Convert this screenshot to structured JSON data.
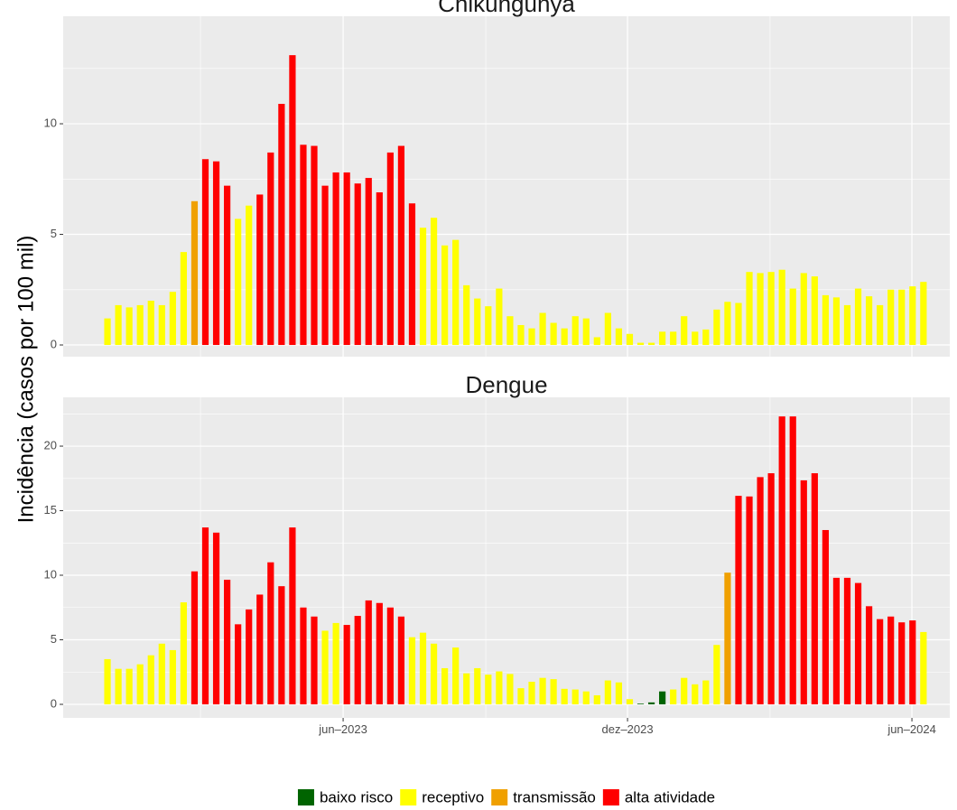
{
  "ylabel": "Incidência (casos por 100 mil)",
  "legend": {
    "position": "bottom",
    "items": [
      {
        "name": "baixo risco",
        "color": "#006400"
      },
      {
        "name": "receptivo",
        "color": "#ffff00"
      },
      {
        "name": "transmissão",
        "color": "#f0a000"
      },
      {
        "name": "alta atividade",
        "color": "#ff0000"
      }
    ]
  },
  "chart_data": [
    {
      "type": "bar",
      "title": "Chikungunya",
      "values": [
        1.2,
        1.8,
        1.7,
        1.8,
        2.0,
        1.8,
        2.4,
        4.2,
        6.5,
        8.4,
        8.3,
        7.2,
        5.7,
        6.3,
        6.8,
        8.7,
        10.9,
        13.1,
        9.05,
        9.0,
        7.2,
        7.8,
        7.8,
        7.3,
        7.55,
        6.9,
        8.7,
        9.0,
        6.4,
        5.3,
        5.75,
        4.5,
        4.75,
        2.7,
        2.1,
        1.75,
        2.55,
        1.3,
        0.9,
        0.75,
        1.45,
        1.0,
        0.75,
        1.3,
        1.2,
        0.35,
        1.45,
        0.75,
        0.5,
        0.1,
        0.1,
        0.6,
        0.6,
        1.3,
        0.6,
        0.7,
        1.6,
        1.95,
        1.9,
        3.3,
        3.25,
        3.3,
        3.4,
        2.55,
        3.25,
        3.1,
        2.25,
        2.15,
        1.8,
        2.55,
        2.2,
        1.8,
        2.5,
        2.5,
        2.65,
        2.85
      ],
      "colors": [
        "#ffff00",
        "#ffff00",
        "#ffff00",
        "#ffff00",
        "#ffff00",
        "#ffff00",
        "#ffff00",
        "#ffff00",
        "#f0a000",
        "#ff0000",
        "#ff0000",
        "#ff0000",
        "#ffff00",
        "#ffff00",
        "#ff0000",
        "#ff0000",
        "#ff0000",
        "#ff0000",
        "#ff0000",
        "#ff0000",
        "#ff0000",
        "#ff0000",
        "#ff0000",
        "#ff0000",
        "#ff0000",
        "#ff0000",
        "#ff0000",
        "#ff0000",
        "#ff0000",
        "#ffff00",
        "#ffff00",
        "#ffff00",
        "#ffff00",
        "#ffff00",
        "#ffff00",
        "#ffff00",
        "#ffff00",
        "#ffff00",
        "#ffff00",
        "#ffff00",
        "#ffff00",
        "#ffff00",
        "#ffff00",
        "#ffff00",
        "#ffff00",
        "#ffff00",
        "#ffff00",
        "#ffff00",
        "#ffff00",
        "#ffff00",
        "#ffff00",
        "#ffff00",
        "#ffff00",
        "#ffff00",
        "#ffff00",
        "#ffff00",
        "#ffff00",
        "#ffff00",
        "#ffff00",
        "#ffff00",
        "#ffff00",
        "#ffff00",
        "#ffff00",
        "#ffff00",
        "#ffff00",
        "#ffff00",
        "#ffff00",
        "#ffff00",
        "#ffff00",
        "#ffff00",
        "#ffff00",
        "#ffff00",
        "#ffff00",
        "#ffff00",
        "#ffff00",
        "#ffff00"
      ],
      "xlim": [
        -4.07,
        77.42
      ],
      "xgrid": [
        21.66,
        47.8,
        73.94
      ],
      "xminor": [
        8.55,
        34.77,
        60.9
      ],
      "ylim": [
        -0.53,
        14.86
      ],
      "yticks": [
        0,
        5,
        10
      ],
      "yminor": [
        2.5,
        7.5,
        12.5
      ],
      "grid": true
    },
    {
      "type": "bar",
      "title": "Dengue",
      "values": [
        3.5,
        2.75,
        2.75,
        3.1,
        3.8,
        4.7,
        4.2,
        7.9,
        10.3,
        13.7,
        13.3,
        9.65,
        6.2,
        7.35,
        8.5,
        11.0,
        9.15,
        13.7,
        7.5,
        6.8,
        5.7,
        6.3,
        6.15,
        6.85,
        8.05,
        7.85,
        7.5,
        6.8,
        5.2,
        5.55,
        4.7,
        2.8,
        4.4,
        2.4,
        2.8,
        2.3,
        2.55,
        2.35,
        1.25,
        1.75,
        2.05,
        1.95,
        1.2,
        1.15,
        1.0,
        0.7,
        1.85,
        1.7,
        0.4,
        0.05,
        0.15,
        1.0,
        1.15,
        2.05,
        1.55,
        1.85,
        4.6,
        10.2,
        16.15,
        16.1,
        17.6,
        17.9,
        22.3,
        22.3,
        17.35,
        17.9,
        13.5,
        9.8,
        9.8,
        9.4,
        7.6,
        6.6,
        6.8,
        6.35,
        6.5,
        5.6
      ],
      "colors": [
        "#ffff00",
        "#ffff00",
        "#ffff00",
        "#ffff00",
        "#ffff00",
        "#ffff00",
        "#ffff00",
        "#ffff00",
        "#ff0000",
        "#ff0000",
        "#ff0000",
        "#ff0000",
        "#ff0000",
        "#ff0000",
        "#ff0000",
        "#ff0000",
        "#ff0000",
        "#ff0000",
        "#ff0000",
        "#ff0000",
        "#ffff00",
        "#ffff00",
        "#ff0000",
        "#ff0000",
        "#ff0000",
        "#ff0000",
        "#ff0000",
        "#ff0000",
        "#ffff00",
        "#ffff00",
        "#ffff00",
        "#ffff00",
        "#ffff00",
        "#ffff00",
        "#ffff00",
        "#ffff00",
        "#ffff00",
        "#ffff00",
        "#ffff00",
        "#ffff00",
        "#ffff00",
        "#ffff00",
        "#ffff00",
        "#ffff00",
        "#ffff00",
        "#ffff00",
        "#ffff00",
        "#ffff00",
        "#ffff00",
        "#006400",
        "#006400",
        "#006400",
        "#ffff00",
        "#ffff00",
        "#ffff00",
        "#ffff00",
        "#ffff00",
        "#f0a000",
        "#ff0000",
        "#ff0000",
        "#ff0000",
        "#ff0000",
        "#ff0000",
        "#ff0000",
        "#ff0000",
        "#ff0000",
        "#ff0000",
        "#ff0000",
        "#ff0000",
        "#ff0000",
        "#ff0000",
        "#ff0000",
        "#ff0000",
        "#ff0000",
        "#ff0000",
        "#ffff00"
      ],
      "xlim": [
        -4.07,
        77.42
      ],
      "xticks": [
        {
          "value": 21.66,
          "label": "jun–2023"
        },
        {
          "value": 47.8,
          "label": "dez–2023"
        },
        {
          "value": 73.94,
          "label": "jun–2024"
        }
      ],
      "xminor": [
        8.55,
        34.77,
        60.9
      ],
      "ylim": [
        -1.05,
        23.78
      ],
      "yticks": [
        0,
        5,
        10,
        15,
        20
      ],
      "yminor": [
        2.5,
        7.5,
        12.5,
        17.5,
        22.5
      ],
      "grid": true
    }
  ]
}
